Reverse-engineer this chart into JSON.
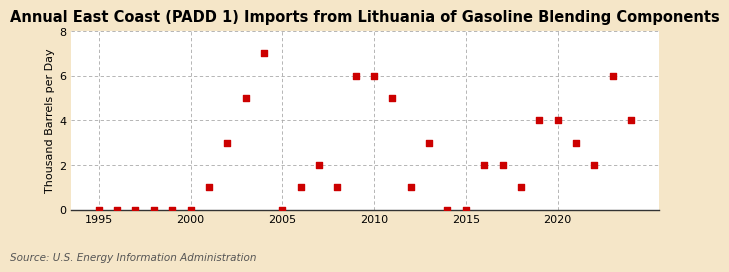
{
  "title": "Annual East Coast (PADD 1) Imports from Lithuania of Gasoline Blending Components",
  "ylabel": "Thousand Barrels per Day",
  "source": "Source: U.S. Energy Information Administration",
  "background_color": "#f5e6c8",
  "plot_background_color": "#ffffff",
  "marker_color": "#cc0000",
  "grid_color": "#aaaaaa",
  "years": [
    1995,
    1996,
    1997,
    1998,
    1999,
    2000,
    2001,
    2002,
    2003,
    2004,
    2005,
    2006,
    2007,
    2008,
    2009,
    2010,
    2011,
    2012,
    2013,
    2014,
    2015,
    2016,
    2017,
    2018,
    2019,
    2020,
    2021,
    2022,
    2023,
    2024
  ],
  "values": [
    0,
    0,
    0,
    0,
    0,
    0,
    1,
    3,
    5,
    7,
    0,
    1,
    2,
    1,
    6,
    6,
    5,
    1,
    3,
    0,
    0,
    2,
    2,
    1,
    4,
    4,
    3,
    2,
    6,
    4
  ],
  "xlim": [
    1993.5,
    2025.5
  ],
  "ylim": [
    0,
    8
  ],
  "yticks": [
    0,
    2,
    4,
    6,
    8
  ],
  "xticks": [
    1995,
    2000,
    2005,
    2010,
    2015,
    2020
  ],
  "title_fontsize": 10.5,
  "label_fontsize": 8,
  "tick_fontsize": 8,
  "source_fontsize": 7.5
}
